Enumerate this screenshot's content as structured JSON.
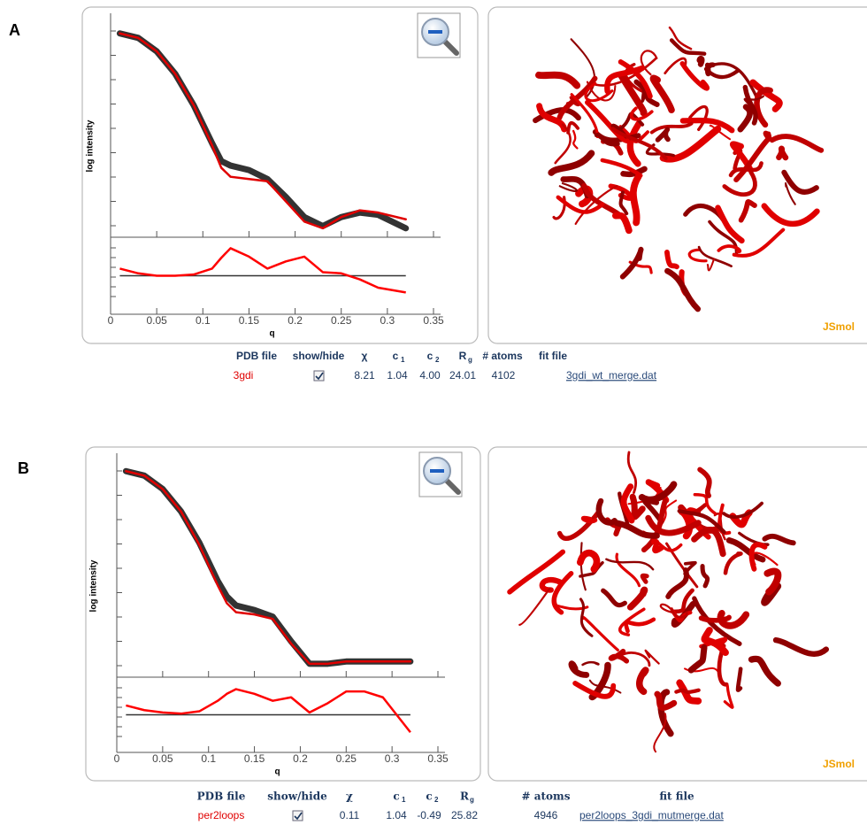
{
  "chart_data": [
    {
      "type": "line",
      "y_label": "log intensity",
      "x_label": "q",
      "xlim": [
        0,
        0.35
      ],
      "xticks": [
        0,
        0.05,
        0.1,
        0.15,
        0.2,
        0.25,
        0.3,
        0.35
      ],
      "ylim": [
        0,
        10
      ],
      "x": [
        0.01,
        0.03,
        0.05,
        0.07,
        0.09,
        0.11,
        0.12,
        0.13,
        0.15,
        0.17,
        0.19,
        0.21,
        0.23,
        0.25,
        0.27,
        0.29,
        0.32
      ],
      "series": [
        {
          "color": "#333333",
          "values": [
            9.1,
            8.9,
            8.3,
            7.3,
            5.9,
            4.2,
            3.4,
            3.2,
            3.0,
            2.6,
            1.8,
            0.9,
            0.5,
            0.9,
            1.1,
            1.0,
            0.4
          ]
        },
        {
          "color": "#e00000",
          "values": [
            9.1,
            8.9,
            8.3,
            7.3,
            5.9,
            4.1,
            3.1,
            2.7,
            2.6,
            2.5,
            1.6,
            0.7,
            0.4,
            0.9,
            1.2,
            1.1,
            0.8
          ]
        }
      ],
      "residual": {
        "ylim": [
          -3,
          3
        ],
        "reference_line": 0,
        "color": "#ff0000",
        "values": [
          0.6,
          0.2,
          0,
          0,
          0.1,
          0.6,
          1.5,
          2.3,
          1.6,
          0.6,
          1.2,
          1.6,
          0.3,
          0.2,
          -0.3,
          -1.0,
          -1.4
        ]
      }
    },
    {
      "type": "line",
      "y_label": "log intensity",
      "x_label": "q",
      "xlim": [
        0,
        0.35
      ],
      "xticks": [
        0,
        0.05,
        0.1,
        0.15,
        0.2,
        0.25,
        0.3,
        0.35
      ],
      "ylim": [
        0,
        10
      ],
      "x": [
        0.01,
        0.03,
        0.05,
        0.07,
        0.09,
        0.11,
        0.12,
        0.13,
        0.15,
        0.17,
        0.19,
        0.21,
        0.23,
        0.25,
        0.27,
        0.29,
        0.32
      ],
      "series": [
        {
          "color": "#333333",
          "values": [
            9.2,
            9.0,
            8.4,
            7.4,
            6.0,
            4.3,
            3.6,
            3.2,
            3.0,
            2.7,
            1.6,
            0.6,
            0.6,
            0.7,
            0.7,
            0.7,
            0.7
          ]
        },
        {
          "color": "#e00000",
          "values": [
            9.2,
            9.0,
            8.4,
            7.4,
            5.9,
            4.1,
            3.3,
            2.9,
            2.8,
            2.6,
            1.5,
            0.6,
            0.6,
            0.7,
            0.7,
            0.7,
            0.7
          ]
        }
      ],
      "residual": {
        "ylim": [
          -3,
          3
        ],
        "reference_line": 0,
        "color": "#ff0000",
        "values": [
          0.8,
          0.4,
          0.2,
          0.1,
          0.3,
          1.2,
          1.8,
          2.2,
          1.8,
          1.2,
          1.5,
          0.2,
          1.0,
          2.0,
          2.0,
          1.5,
          -1.5
        ]
      }
    }
  ],
  "panels": [
    {
      "label": "A",
      "viewer": "JSmol",
      "table": {
        "headers": [
          {
            "text": "PDB file"
          },
          {
            "text": "show/hide"
          },
          {
            "text": "χ"
          },
          {
            "text": "c",
            "sub": "1"
          },
          {
            "text": "c",
            "sub": "2"
          },
          {
            "text": "R",
            "sub": "g"
          },
          {
            "text": "# atoms"
          },
          {
            "text": "fit file"
          }
        ],
        "row": [
          "3gdi",
          "8.21",
          "1.04",
          "4.00",
          "24.01",
          "4102",
          "3gdi_wt_merge.dat"
        ]
      }
    },
    {
      "label": "B",
      "viewer": "JSmol",
      "table": {
        "headers": [
          {
            "text": "PDB file"
          },
          {
            "text": "show/hide"
          },
          {
            "text": "χ"
          },
          {
            "text": "c",
            "sub": "1"
          },
          {
            "text": "c",
            "sub": "2"
          },
          {
            "text": "R",
            "sub": "g"
          },
          {
            "text": "# atoms"
          },
          {
            "text": "fit file"
          }
        ],
        "row": [
          "per2loops",
          "0.11",
          "1.04",
          "-0.49",
          "25.82",
          "4946",
          "per2loops_3gdi_mutmerge.dat"
        ]
      }
    }
  ]
}
